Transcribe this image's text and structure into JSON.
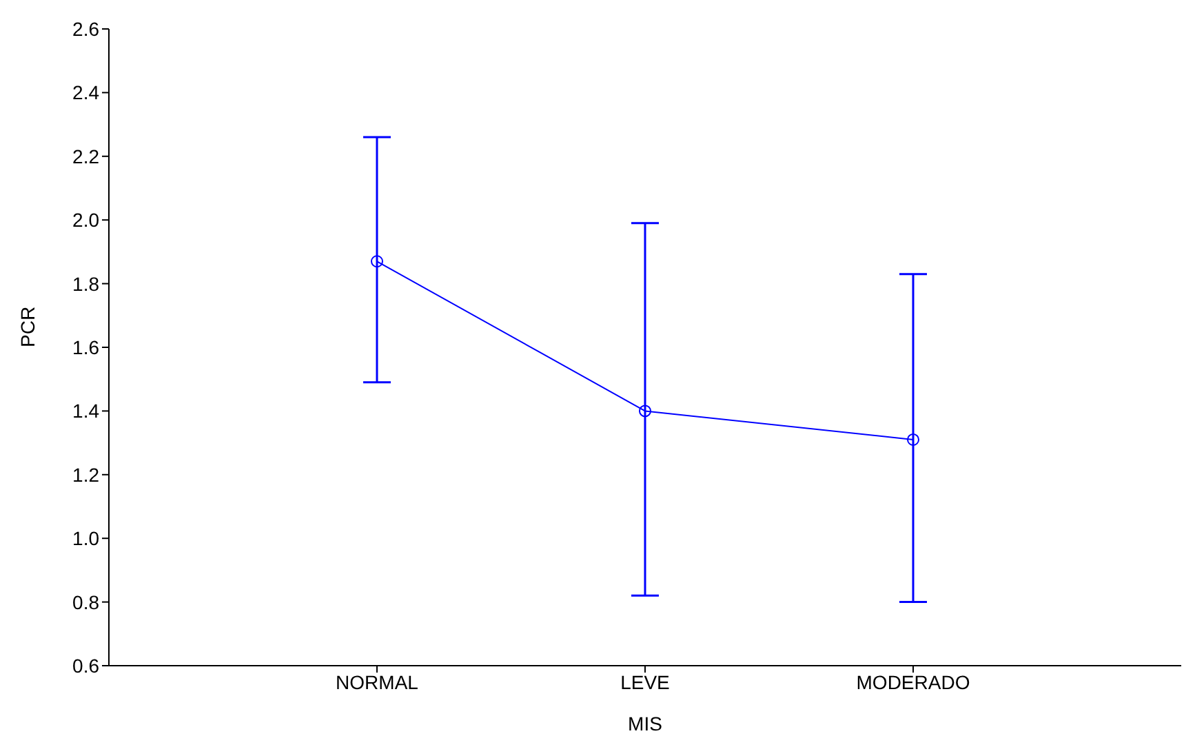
{
  "chart_data": {
    "type": "line",
    "xlabel": "MIS",
    "ylabel": "PCR",
    "categories": [
      "NORMAL",
      "LEVE",
      "MODERADO"
    ],
    "series": [
      {
        "color": "#0000ff",
        "values": [
          1.87,
          1.4,
          1.31
        ],
        "errors": [
          [
            1.49,
            2.26
          ],
          [
            0.82,
            1.99
          ],
          [
            0.8,
            1.83
          ]
        ]
      }
    ],
    "ylim": [
      0.6,
      2.6
    ],
    "yticks": [
      {
        "value": 0.6,
        "label": "0.6"
      },
      {
        "value": 0.8,
        "label": "0.8"
      },
      {
        "value": 1.0,
        "label": "1.0"
      },
      {
        "value": 1.2,
        "label": "1.2"
      },
      {
        "value": 1.4,
        "label": "1.4"
      },
      {
        "value": 1.6,
        "label": "1.6"
      },
      {
        "value": 1.8,
        "label": "1.8"
      },
      {
        "value": 2.0,
        "label": "2.0"
      },
      {
        "value": 2.2,
        "label": "2.2"
      },
      {
        "value": 2.4,
        "label": "2.4"
      },
      {
        "value": 2.6,
        "label": "2.6"
      }
    ],
    "grid": false,
    "legend": false,
    "marker": "circle",
    "line_style": "solid"
  }
}
